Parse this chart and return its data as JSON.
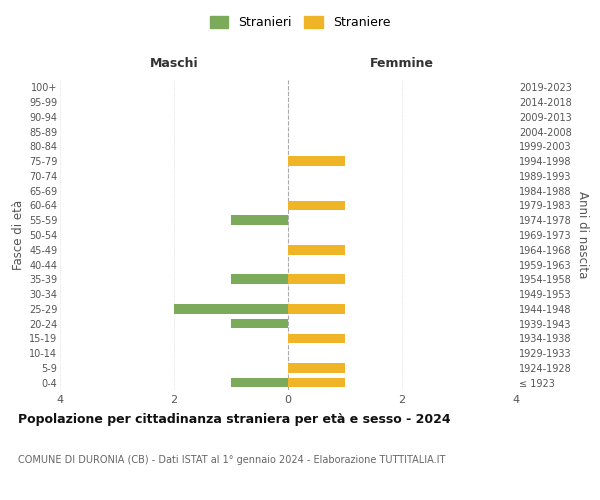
{
  "age_groups": [
    "100+",
    "95-99",
    "90-94",
    "85-89",
    "80-84",
    "75-79",
    "70-74",
    "65-69",
    "60-64",
    "55-59",
    "50-54",
    "45-49",
    "40-44",
    "35-39",
    "30-34",
    "25-29",
    "20-24",
    "15-19",
    "10-14",
    "5-9",
    "0-4"
  ],
  "birth_years": [
    "≤ 1923",
    "1924-1928",
    "1929-1933",
    "1934-1938",
    "1939-1943",
    "1944-1948",
    "1949-1953",
    "1954-1958",
    "1959-1963",
    "1964-1968",
    "1969-1973",
    "1974-1978",
    "1979-1983",
    "1984-1988",
    "1989-1993",
    "1994-1998",
    "1999-2003",
    "2004-2008",
    "2009-2013",
    "2014-2018",
    "2019-2023"
  ],
  "maschi": [
    0,
    0,
    0,
    0,
    0,
    0,
    0,
    0,
    0,
    1,
    0,
    0,
    0,
    1,
    0,
    2,
    1,
    0,
    0,
    0,
    1
  ],
  "femmine": [
    0,
    0,
    0,
    0,
    0,
    1,
    0,
    0,
    1,
    0,
    0,
    1,
    0,
    1,
    0,
    1,
    0,
    1,
    0,
    1,
    1
  ],
  "color_maschi": "#7aaa5a",
  "color_femmine": "#f0b429",
  "title": "Popolazione per cittadinanza straniera per età e sesso - 2024",
  "subtitle": "COMUNE DI DURONIA (CB) - Dati ISTAT al 1° gennaio 2024 - Elaborazione TUTTITALIA.IT",
  "xlabel_left": "Maschi",
  "xlabel_right": "Femmine",
  "ylabel_left": "Fasce di età",
  "ylabel_right": "Anni di nascita",
  "legend_maschi": "Stranieri",
  "legend_femmine": "Straniere",
  "xlim": 4,
  "background_color": "#ffffff",
  "grid_color": "#d0d0d0"
}
